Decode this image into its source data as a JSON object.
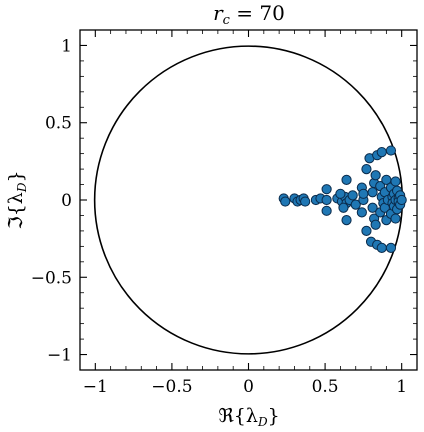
{
  "chart_data": {
    "type": "scatter",
    "title": "r_c = 70",
    "title_parts": {
      "var": "r",
      "sub": "c",
      "rest": " = 70"
    },
    "xlabel": "ℜ{λ_D}",
    "xlabel_parts": {
      "pre": "ℜ{λ",
      "sub": "D",
      "post": "}"
    },
    "ylabel": "ℑ{λ_D}",
    "ylabel_parts": {
      "pre": "ℑ{λ",
      "sub": "D",
      "post": "}"
    },
    "xlim": [
      -1.1,
      1.1
    ],
    "ylim": [
      -1.1,
      1.1
    ],
    "xticks": [
      -1,
      -0.5,
      0,
      0.5,
      1
    ],
    "xtick_labels": [
      "−1",
      "−0.5",
      "0",
      "0.5",
      "1"
    ],
    "yticks": [
      -1,
      -0.5,
      0,
      0.5,
      1
    ],
    "ytick_labels": [
      "−1",
      "−0.5",
      "0",
      "0.5",
      "1"
    ],
    "grid": false,
    "reference_curve": {
      "type": "unit-circle",
      "radius": 1,
      "color": "#000000"
    },
    "marker_color": "#1f77b4",
    "series": [
      {
        "points": [
          [
            0.23,
            0.01
          ],
          [
            0.24,
            -0.01
          ],
          [
            0.3,
            0.01
          ],
          [
            0.32,
            -0.01
          ],
          [
            0.34,
            0.0
          ],
          [
            0.36,
            0.01
          ],
          [
            0.37,
            -0.01
          ],
          [
            0.44,
            0.0
          ],
          [
            0.47,
            0.01
          ],
          [
            0.51,
            0.07
          ],
          [
            0.51,
            -0.07
          ],
          [
            0.51,
            0.0
          ],
          [
            0.58,
            0.01
          ],
          [
            0.61,
            -0.01
          ],
          [
            0.63,
            0.02
          ],
          [
            0.64,
            -0.02
          ],
          [
            0.66,
            0.0
          ],
          [
            0.6,
            0.04
          ],
          [
            0.62,
            -0.05
          ],
          [
            0.68,
            0.03
          ],
          [
            0.7,
            -0.03
          ],
          [
            0.64,
            0.13
          ],
          [
            0.64,
            -0.13
          ],
          [
            0.74,
            0.08
          ],
          [
            0.74,
            -0.08
          ],
          [
            0.75,
            0.0
          ],
          [
            0.75,
            0.04
          ],
          [
            0.77,
            0.2
          ],
          [
            0.77,
            -0.2
          ],
          [
            0.79,
            0.27
          ],
          [
            0.8,
            -0.27
          ],
          [
            0.81,
            0.05
          ],
          [
            0.81,
            -0.05
          ],
          [
            0.82,
            0.11
          ],
          [
            0.82,
            -0.12
          ],
          [
            0.83,
            0.16
          ],
          [
            0.83,
            -0.16
          ],
          [
            0.84,
            0.29
          ],
          [
            0.84,
            -0.29
          ],
          [
            0.87,
            0.31
          ],
          [
            0.87,
            -0.31
          ],
          [
            0.86,
            0.09
          ],
          [
            0.86,
            -0.08
          ],
          [
            0.87,
            0.02
          ],
          [
            0.88,
            -0.02
          ],
          [
            0.89,
            0.05
          ],
          [
            0.89,
            -0.05
          ],
          [
            0.9,
            0.13
          ],
          [
            0.9,
            -0.13
          ],
          [
            0.91,
            0.0
          ],
          [
            0.93,
            0.08
          ],
          [
            0.93,
            -0.09
          ],
          [
            0.93,
            0.32
          ],
          [
            0.93,
            -0.31
          ],
          [
            0.94,
            0.02
          ],
          [
            0.94,
            -0.02
          ],
          [
            0.95,
            0.04
          ],
          [
            0.95,
            -0.04
          ],
          [
            0.96,
            0.0
          ],
          [
            0.96,
            0.12
          ],
          [
            0.96,
            -0.12
          ],
          [
            0.97,
            0.06
          ],
          [
            0.97,
            -0.06
          ],
          [
            0.98,
            0.01
          ],
          [
            0.98,
            -0.01
          ],
          [
            0.99,
            0.03
          ],
          [
            0.99,
            -0.03
          ],
          [
            1.0,
            0.0
          ]
        ]
      }
    ]
  }
}
